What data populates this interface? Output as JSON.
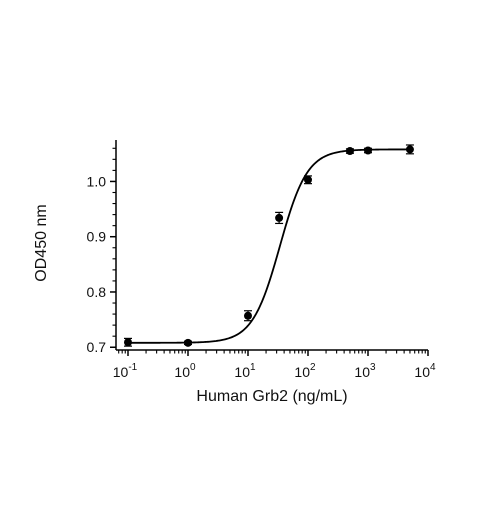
{
  "chart_data": {
    "type": "scatter",
    "xlabel": "Human Grb2 (ng/mL)",
    "ylabel": "OD450 nm",
    "xscale": "log",
    "xlim": [
      0.0631,
      10000
    ],
    "ylim": [
      0.695,
      1.075
    ],
    "x_ticks": [
      {
        "value": 0.1,
        "base": "10",
        "exp": "-1"
      },
      {
        "value": 1,
        "base": "10",
        "exp": "0"
      },
      {
        "value": 10,
        "base": "10",
        "exp": "1"
      },
      {
        "value": 100,
        "base": "10",
        "exp": "2"
      },
      {
        "value": 1000,
        "base": "10",
        "exp": "3"
      },
      {
        "value": 10000,
        "base": "10",
        "exp": "4"
      }
    ],
    "y_ticks": [
      {
        "value": 0.7,
        "label": "0.7"
      },
      {
        "value": 0.8,
        "label": "0.8"
      },
      {
        "value": 0.9,
        "label": "0.9"
      },
      {
        "value": 1.0,
        "label": "1.0"
      }
    ],
    "points": [
      {
        "x": 0.1,
        "y": 0.709,
        "err": 0.007
      },
      {
        "x": 1,
        "y": 0.708,
        "err": 0.003
      },
      {
        "x": 10,
        "y": 0.757,
        "err": 0.009
      },
      {
        "x": 33,
        "y": 0.934,
        "err": 0.01
      },
      {
        "x": 100,
        "y": 1.003,
        "err": 0.007
      },
      {
        "x": 500,
        "y": 1.055,
        "err": 0.004
      },
      {
        "x": 1000,
        "y": 1.056,
        "err": 0.004
      },
      {
        "x": 5000,
        "y": 1.058,
        "err": 0.008
      }
    ],
    "fit": {
      "model": "4PL",
      "bottom": 0.708,
      "top": 1.058,
      "ec50": 34,
      "hill": 1.9
    },
    "grid": false,
    "legend": "none",
    "color": "#000000"
  }
}
